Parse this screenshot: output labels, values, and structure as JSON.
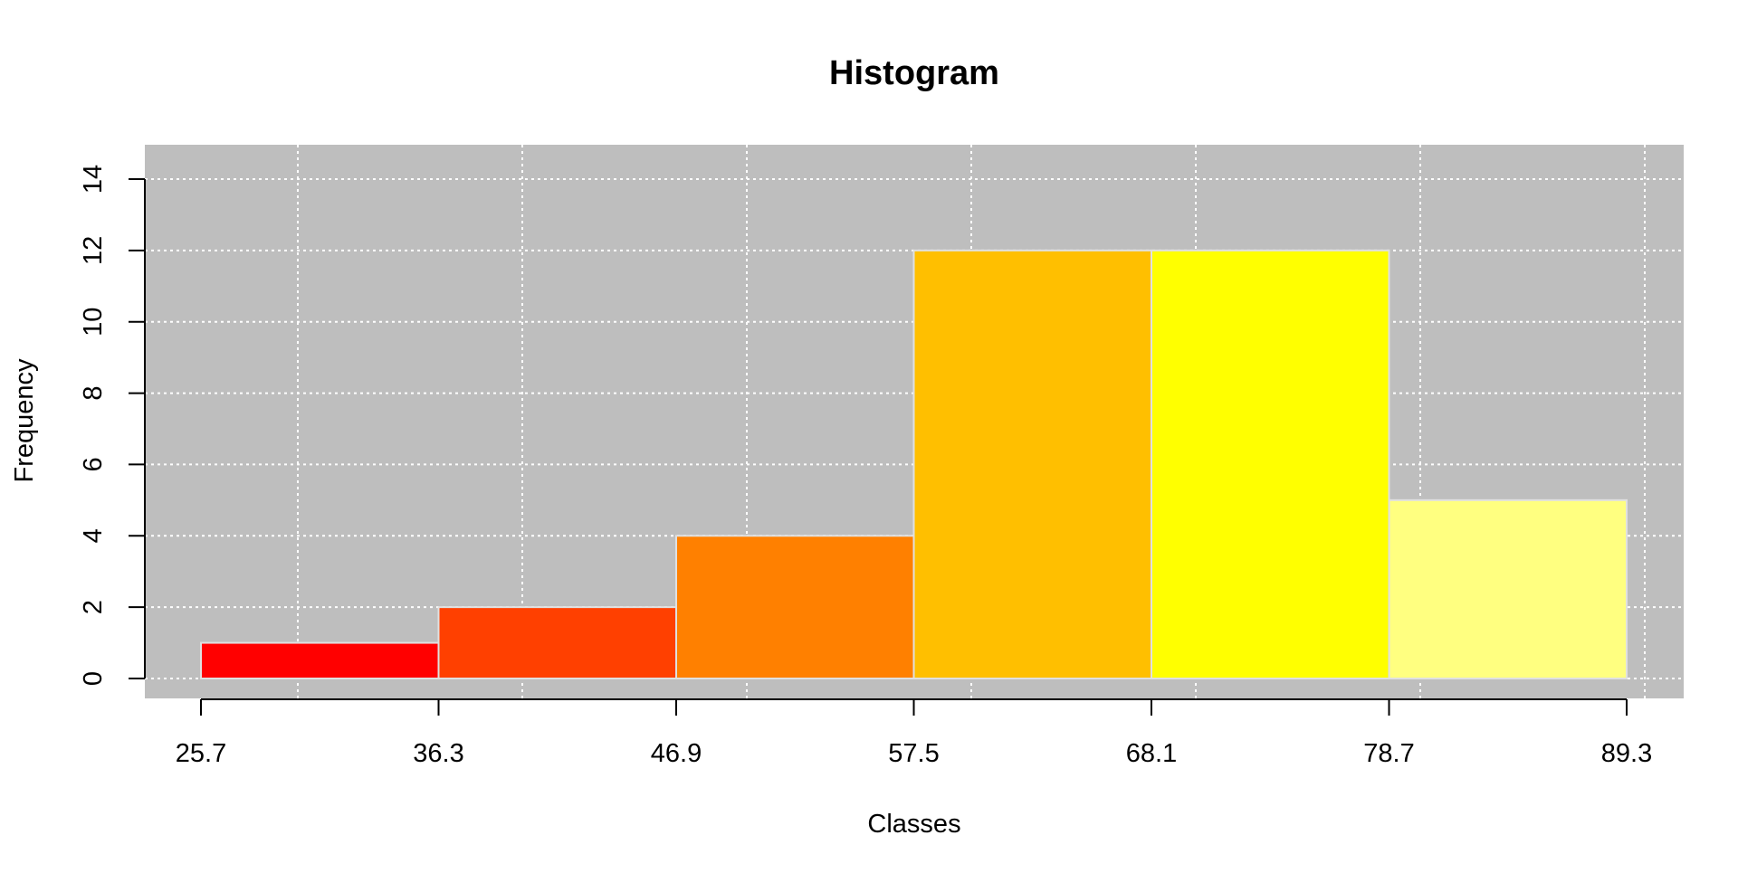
{
  "chart_data": {
    "type": "bar",
    "title": "Histogram",
    "xlabel": "Classes",
    "ylabel": "Frequency",
    "bin_edges": [
      25.7,
      36.3,
      46.9,
      57.5,
      68.1,
      78.7,
      89.3
    ],
    "x_tick_labels": [
      "25.7",
      "36.3",
      "46.9",
      "57.5",
      "68.1",
      "78.7",
      "89.3"
    ],
    "values": [
      1,
      2,
      4,
      12,
      12,
      5
    ],
    "colors": [
      "#FF0000",
      "#FF4000",
      "#FF8000",
      "#FFBF00",
      "#FFFF00",
      "#FFFF80"
    ],
    "y_ticks": [
      0,
      2,
      4,
      6,
      8,
      10,
      12,
      14
    ],
    "y_tick_labels": [
      "0",
      "2",
      "4",
      "6",
      "8",
      "10",
      "12",
      "14"
    ],
    "ylim": [
      0,
      14
    ],
    "grid": true,
    "background_color": "#BEBEBE",
    "grid_color": "#FFFFFF",
    "bar_border_color": "#E0E0E0"
  }
}
